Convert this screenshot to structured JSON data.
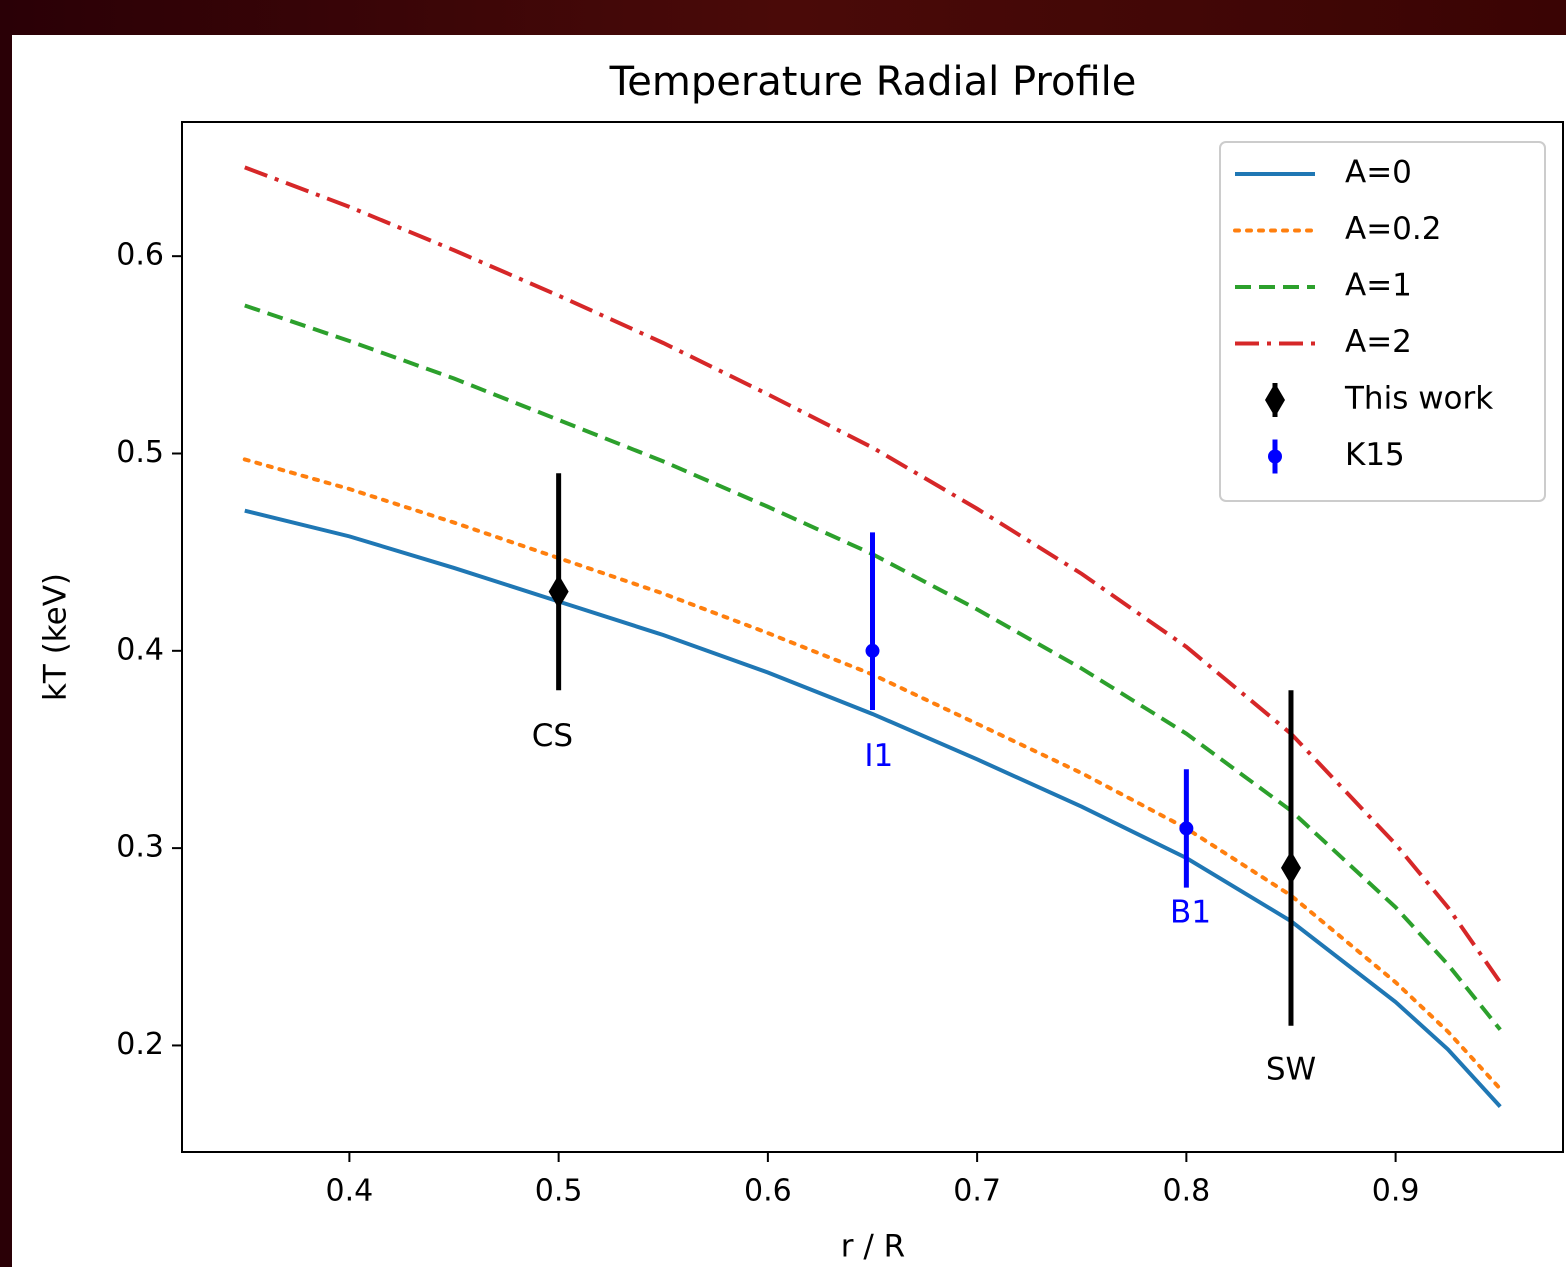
{
  "chart_data": {
    "type": "line",
    "title": "Temperature Radial Profile",
    "xlabel": "r / R",
    "ylabel": "kT (keV)",
    "xlim": [
      0.32,
      0.98
    ],
    "ylim": [
      0.146,
      0.668
    ],
    "xticks": [
      0.4,
      0.5,
      0.6,
      0.7,
      0.8,
      0.9
    ],
    "yticks": [
      0.2,
      0.3,
      0.4,
      0.5,
      0.6
    ],
    "legend": "upper right",
    "x": [
      0.35,
      0.4,
      0.45,
      0.5,
      0.55,
      0.6,
      0.65,
      0.7,
      0.75,
      0.8,
      0.85,
      0.9,
      0.925,
      0.95
    ],
    "series": [
      {
        "name": "A=0",
        "color": "#1f77b4",
        "linestyle": "solid",
        "values": [
          0.471,
          0.458,
          0.442,
          0.425,
          0.408,
          0.389,
          0.368,
          0.345,
          0.321,
          0.295,
          0.263,
          0.222,
          0.198,
          0.169
        ]
      },
      {
        "name": "A=0.2",
        "color": "#ff7f0e",
        "linestyle": "dotted",
        "values": [
          0.497,
          0.482,
          0.465,
          0.447,
          0.429,
          0.409,
          0.388,
          0.363,
          0.338,
          0.31,
          0.276,
          0.232,
          0.207,
          0.178
        ]
      },
      {
        "name": "A=1",
        "color": "#2ca02c",
        "linestyle": "dashed",
        "values": [
          0.575,
          0.557,
          0.538,
          0.517,
          0.496,
          0.473,
          0.449,
          0.421,
          0.391,
          0.358,
          0.319,
          0.27,
          0.241,
          0.208
        ]
      },
      {
        "name": "A=2",
        "color": "#d62728",
        "linestyle": "dashdot",
        "values": [
          0.645,
          0.625,
          0.603,
          0.58,
          0.556,
          0.53,
          0.503,
          0.472,
          0.439,
          0.402,
          0.358,
          0.302,
          0.27,
          0.232
        ]
      }
    ],
    "errorbars": [
      {
        "name": "This work",
        "color": "#000000",
        "marker": "diamond",
        "x": [
          0.5,
          0.85
        ],
        "values": [
          0.43,
          0.29
        ],
        "err_low": [
          0.05,
          0.08
        ],
        "err_high": [
          0.06,
          0.09
        ]
      },
      {
        "name": "K15",
        "color": "#0000ff",
        "marker": "circle",
        "x": [
          0.65,
          0.8
        ],
        "values": [
          0.4,
          0.31
        ],
        "err_low": [
          0.03,
          0.03
        ],
        "err_high": [
          0.06,
          0.03
        ]
      }
    ],
    "annotations": [
      {
        "text": "CS",
        "x": 0.497,
        "y": 0.356,
        "color": "#000000"
      },
      {
        "text": "I1",
        "x": 0.653,
        "y": 0.346,
        "color": "#0000ff"
      },
      {
        "text": "B1",
        "x": 0.802,
        "y": 0.2665,
        "color": "#0000ff"
      },
      {
        "text": "SW",
        "x": 0.85,
        "y": 0.187,
        "color": "#000000"
      }
    ]
  }
}
